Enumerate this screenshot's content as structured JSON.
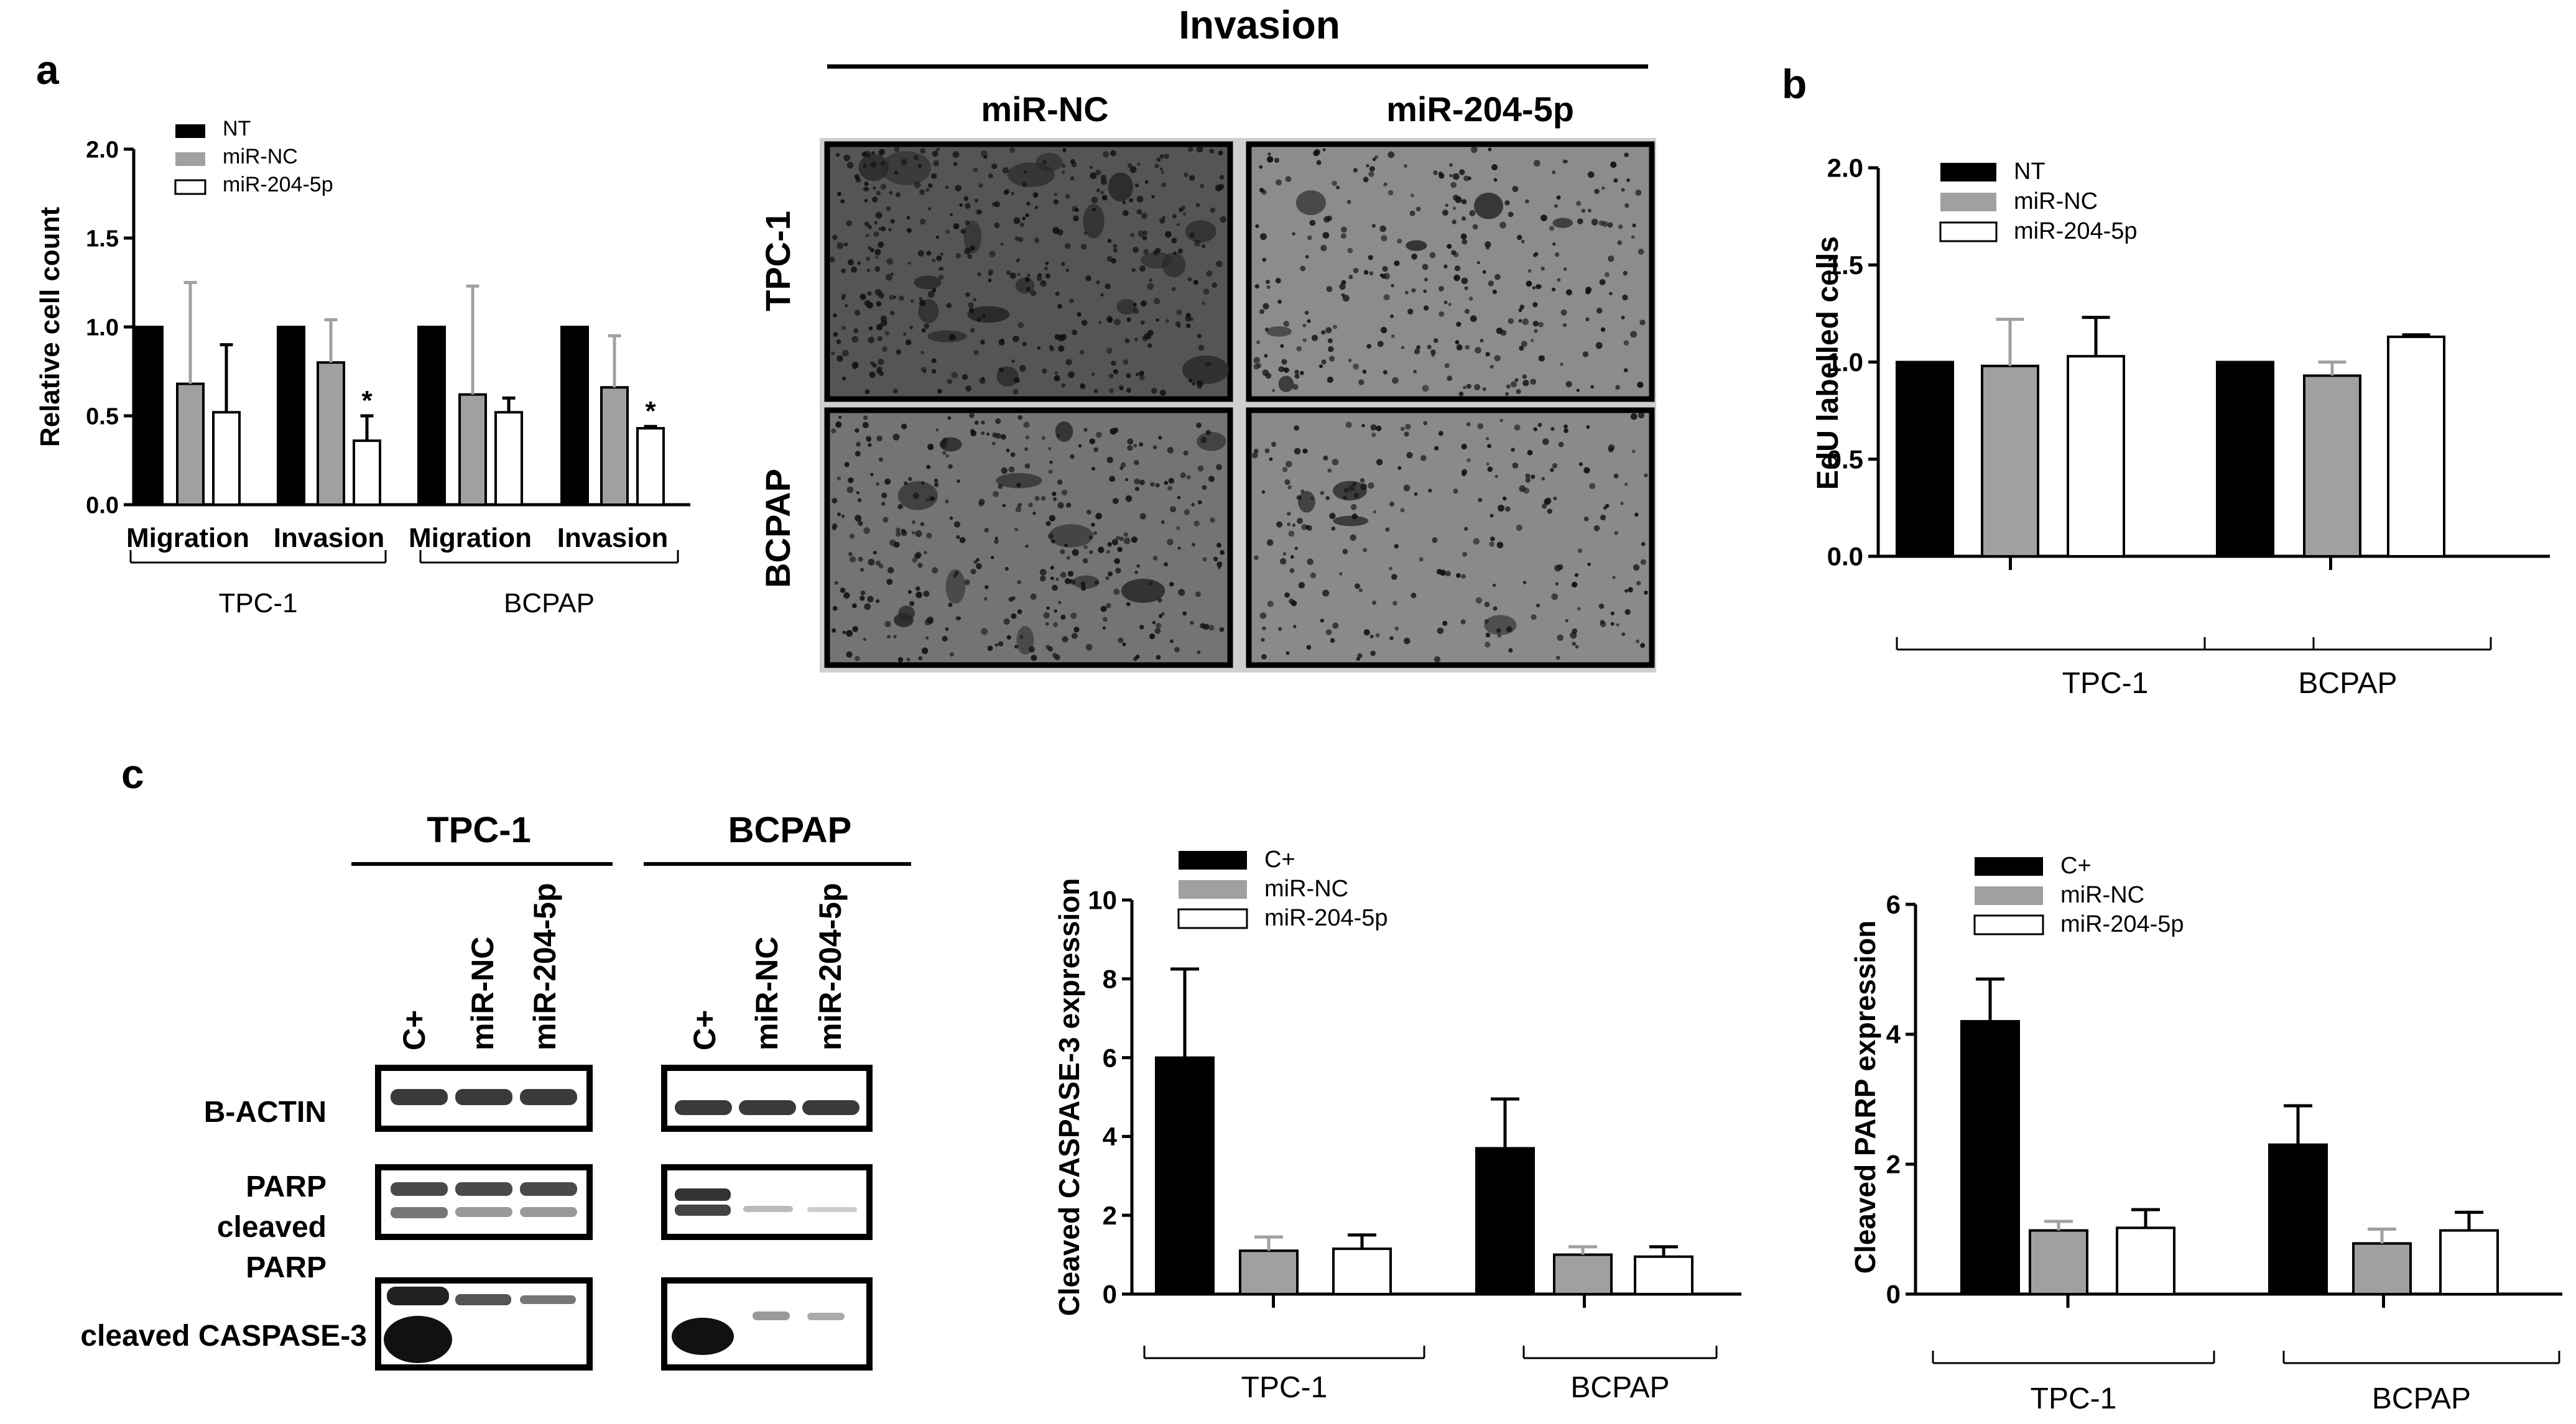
{
  "panel_letters": {
    "a": "a",
    "b": "b",
    "c": "c"
  },
  "colors": {
    "nt": "#000000",
    "mirnc": "#a0a0a0",
    "mir204": "#ffffff"
  },
  "invasion_images": {
    "header": "Invasion",
    "columns": [
      "miR-NC",
      "miR-204-5p"
    ],
    "rows": [
      "TPC-1",
      "BCPAP"
    ]
  },
  "western_blot": {
    "groups": [
      "TPC-1",
      "BCPAP"
    ],
    "lanes": [
      "C+",
      "miR-NC",
      "miR-204-5p"
    ],
    "bands": {
      "actin": "B-ACTIN",
      "parp": "PARP",
      "cleaved_parp_1": "cleaved",
      "cleaved_parp_2": "PARP",
      "caspase": "cleaved CASPASE-3"
    }
  },
  "chart_data": [
    {
      "id": "a",
      "type": "bar",
      "ylabel": "Relative cell count",
      "ylim": [
        0,
        2.0
      ],
      "yticks": [
        "0.0",
        "0.5",
        "1.0",
        "1.5",
        "2.0"
      ],
      "categories": [
        "Migration",
        "Invasion",
        "Migration",
        "Invasion"
      ],
      "groups": [
        "TPC-1",
        "BCPAP"
      ],
      "series": [
        {
          "name": "NT",
          "values": [
            1.0,
            1.0,
            1.0,
            1.0
          ],
          "errors": [
            0,
            0,
            0,
            0
          ]
        },
        {
          "name": "miR-NC",
          "values": [
            0.68,
            0.8,
            0.62,
            0.66
          ],
          "errors": [
            0.57,
            0.24,
            0.61,
            0.29
          ]
        },
        {
          "name": "miR-204-5p",
          "values": [
            0.52,
            0.36,
            0.52,
            0.43
          ],
          "errors": [
            0.38,
            0.14,
            0.08,
            0.01
          ]
        }
      ],
      "annotations": [
        {
          "category": 1,
          "series": 2,
          "text": "*"
        },
        {
          "category": 3,
          "series": 2,
          "text": "*"
        }
      ],
      "legend": "top-left"
    },
    {
      "id": "b",
      "type": "bar",
      "ylabel": "EdU labelled cells",
      "ylim": [
        0,
        2.0
      ],
      "yticks": [
        "0.0",
        "0.5",
        "1.0",
        "1.5",
        "2.0"
      ],
      "categories": [
        "TPC-1",
        "BCPAP"
      ],
      "series": [
        {
          "name": "NT",
          "values": [
            1.0,
            1.0
          ],
          "errors": [
            0,
            0
          ]
        },
        {
          "name": "miR-NC",
          "values": [
            0.98,
            0.93
          ],
          "errors": [
            0.24,
            0.07
          ]
        },
        {
          "name": "miR-204-5p",
          "values": [
            1.03,
            1.13
          ],
          "errors": [
            0.2,
            0.01
          ]
        }
      ],
      "legend": "top-left"
    },
    {
      "id": "c1",
      "type": "bar",
      "ylabel": "Cleaved CASPASE-3 expression",
      "ylim": [
        0,
        10
      ],
      "yticks": [
        "0",
        "2",
        "4",
        "6",
        "8",
        "10"
      ],
      "categories": [
        "TPC-1",
        "BCPAP"
      ],
      "series": [
        {
          "name": "C+",
          "values": [
            6.0,
            3.7
          ],
          "errors": [
            2.25,
            1.25
          ]
        },
        {
          "name": "miR-NC",
          "values": [
            1.1,
            1.0
          ],
          "errors": [
            0.35,
            0.2
          ]
        },
        {
          "name": "miR-204-5p",
          "values": [
            1.15,
            0.95
          ],
          "errors": [
            0.35,
            0.25
          ]
        }
      ],
      "legend": "top-left"
    },
    {
      "id": "c2",
      "type": "bar",
      "ylabel": "Cleaved PARP expression",
      "ylim": [
        0,
        6
      ],
      "yticks": [
        "0",
        "2",
        "4",
        "6"
      ],
      "categories": [
        "TPC-1",
        "BCPAP"
      ],
      "series": [
        {
          "name": "C+",
          "values": [
            4.2,
            2.3
          ],
          "errors": [
            0.65,
            0.6
          ]
        },
        {
          "name": "miR-NC",
          "values": [
            0.98,
            0.78
          ],
          "errors": [
            0.14,
            0.22
          ]
        },
        {
          "name": "miR-204-5p",
          "values": [
            1.02,
            0.98
          ],
          "errors": [
            0.28,
            0.28
          ]
        }
      ],
      "legend": "top-left"
    }
  ]
}
